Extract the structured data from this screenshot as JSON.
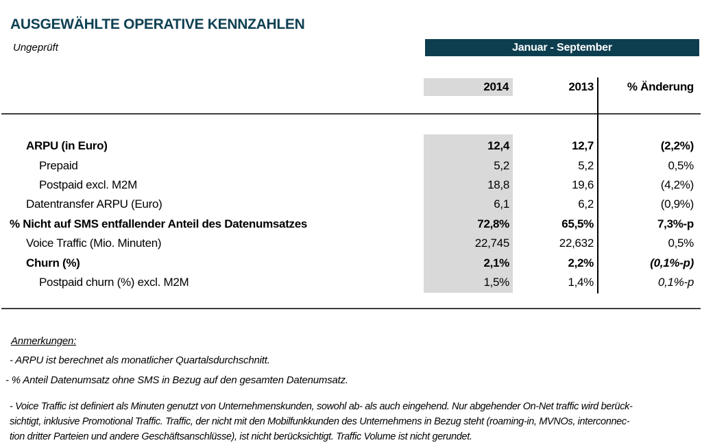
{
  "header": {
    "title": "AUSGEWÄHLTE OPERATIVE KENNZAHLEN",
    "subtitle": "Ungeprüft",
    "period_label": "Januar - September"
  },
  "table": {
    "columns": {
      "y2014": "2014",
      "y2013": "2013",
      "change": "% Änderung"
    },
    "rows": [
      {
        "label": "ARPU (in Euro)",
        "y2014": "12,4",
        "y2013": "12,7",
        "change": "(2,2%)"
      },
      {
        "label": "Prepaid",
        "y2014": "5,2",
        "y2013": "5,2",
        "change": "0,5%"
      },
      {
        "label": "Postpaid excl. M2M",
        "y2014": "18,8",
        "y2013": "19,6",
        "change": "(4,2%)"
      },
      {
        "label": "Datentransfer ARPU (Euro)",
        "y2014": "6,1",
        "y2013": "6,2",
        "change": "(0,9%)"
      },
      {
        "label": "% Nicht auf SMS entfallender Anteil des Datenumsatzes",
        "y2014": "72,8%",
        "y2013": "65,5%",
        "change": "7,3%-p"
      },
      {
        "label": "Voice Traffic (Mio. Minuten)",
        "y2014": "22,745",
        "y2013": "22,632",
        "change": "0,5%"
      },
      {
        "label": "Churn (%)",
        "y2014": "2,1%",
        "y2013": "2,2%",
        "change": "(0,1%-p)"
      },
      {
        "label": "Postpaid churn (%) excl. M2M",
        "y2014": "1,5%",
        "y2013": "1,4%",
        "change": "0,1%-p"
      }
    ]
  },
  "notes": {
    "heading": "Anmerkungen:",
    "note1": "- ARPU ist berechnet als monatlicher Quartalsdurchschnitt.",
    "note2": "- % Anteil Datenumsatz ohne SMS in Bezug auf den gesamten Datenumsatz.",
    "note3_lines": [
      "- Voice Traffic ist definiert als Minuten genutzt von Unternehmenskunden, sowohl ab- als auch eingehend. Nur abgehender On-Net traffic wird berück-",
      "sichtigt, inklusive Promotional Traffic. Traffic, der nicht mit den Mobilfunkkunden des Unternehmens in Bezug steht (roaming-in, MVNOs, interconnec-",
      "tion dritter Parteien und andere Geschäftsanschlüsse), ist nicht berücksichtigt. Traffic Volume ist nicht gerundet."
    ]
  },
  "colors": {
    "accent_teal": "#0d3e50",
    "highlight_gray": "#d9d9d9"
  }
}
